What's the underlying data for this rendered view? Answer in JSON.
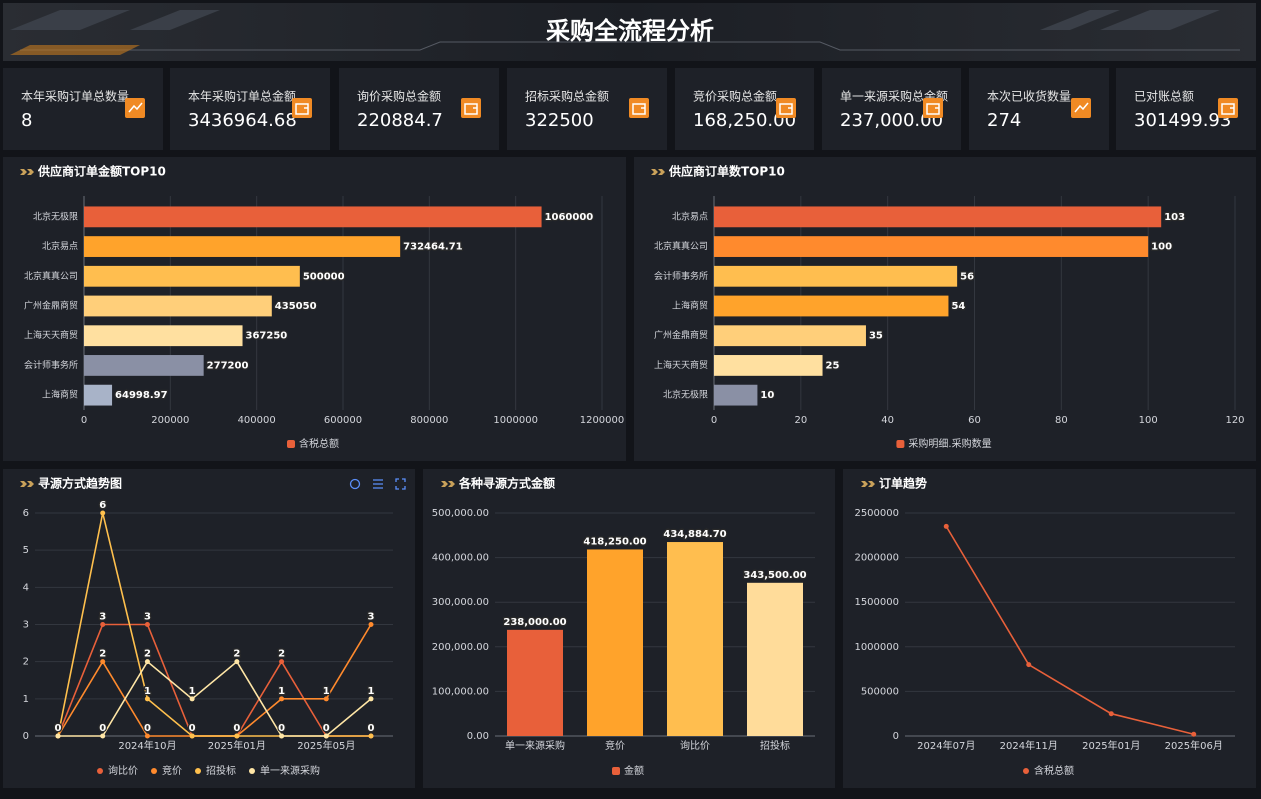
{
  "header": {
    "title": "采购全流程分析"
  },
  "kpis": [
    {
      "label": "本年采购订单总数量",
      "value": 8
    },
    {
      "label": "本年采购订单总金额",
      "value": 3436964.68
    },
    {
      "label": "询价采购总金额",
      "value": 220884.7
    },
    {
      "label": "招标采购总金额",
      "value": 322500
    },
    {
      "label": "竞价采购总金额",
      "value": 168250,
      "value_label": "168,250.00"
    },
    {
      "label": "单一来源采购总金额",
      "value": 237000,
      "value_label": "237,000.00"
    },
    {
      "label": "本次已收货数量",
      "value": 274
    },
    {
      "label": "已对账总额",
      "value": 301499.93
    }
  ],
  "chart_data": [
    {
      "type": "hbar",
      "title": "供应商订单金额TOP10",
      "categories": [
        "北京无极限",
        "北京易点",
        "北京真真公司",
        "广州金鼎商贸",
        "上海天天商贸",
        "会计师事务所",
        "上海商贸"
      ],
      "series": [
        {
          "name": "含税总额",
          "color": "#e8603a",
          "values": [
            1060000,
            732464.71,
            500000,
            435050,
            367250,
            277200,
            64998.97
          ]
        }
      ],
      "colors": [
        "#e8603a",
        "#ffa32b",
        "#ffbe4f",
        "#ffcf7a",
        "#ffe0a0",
        "#8a90a5",
        "#a8b3c8"
      ],
      "xlim": [
        0,
        1200000
      ],
      "xticks": [
        0,
        200000,
        400000,
        600000,
        800000,
        1000000,
        1200000
      ],
      "grid": true
    },
    {
      "type": "hbar",
      "title": "供应商订单数TOP10",
      "categories": [
        "北京易点",
        "北京真真公司",
        "会计师事务所",
        "上海商贸",
        "广州金鼎商贸",
        "上海天天商贸",
        "北京无极限"
      ],
      "series": [
        {
          "name": "采购明细.采购数量",
          "color": "#e8603a",
          "values": [
            103,
            100,
            56,
            54,
            35,
            25,
            10
          ]
        }
      ],
      "colors": [
        "#e8603a",
        "#ff8a2d",
        "#ffbe4f",
        "#ffa32b",
        "#ffcf7a",
        "#ffe0a0",
        "#8a90a5"
      ],
      "xlim": [
        0,
        120
      ],
      "xticks": [
        0,
        20,
        40,
        60,
        80,
        100,
        120
      ],
      "grid": true
    },
    {
      "type": "line",
      "title": "寻源方式趋势图",
      "categories": [
        null,
        null,
        "2024年10月",
        null,
        "2025年01月",
        null,
        "2025年05月",
        null
      ],
      "series": [
        {
          "name": "询比价",
          "color": "#e8603a",
          "values": [
            0,
            3,
            3,
            0,
            0,
            2,
            0,
            0
          ]
        },
        {
          "name": "竞价",
          "color": "#ff8a2d",
          "values": [
            0,
            2,
            0,
            0,
            0,
            1,
            1,
            3
          ]
        },
        {
          "name": "招投标",
          "color": "#ffc04d",
          "values": [
            0,
            6,
            1,
            0,
            0,
            0,
            0,
            0
          ]
        },
        {
          "name": "单一来源采购",
          "color": "#ffe6a6",
          "values": [
            0,
            0,
            2,
            1,
            2,
            0,
            0,
            1
          ]
        }
      ],
      "ylim": [
        0,
        6
      ],
      "yticks": [
        0,
        1,
        2,
        3,
        4,
        5,
        6
      ],
      "grid": true,
      "data_labels": true
    },
    {
      "type": "bar",
      "title": "各种寻源方式金额",
      "categories": [
        "单一来源采购",
        "竞价",
        "询比价",
        "招投标"
      ],
      "series": [
        {
          "name": "金额",
          "color": "#e8603a",
          "values": [
            238000,
            418250,
            434884.7,
            343500
          ],
          "value_labels": [
            "238,000.00",
            "418,250.00",
            "434,884.70",
            "343,500.00"
          ]
        }
      ],
      "colors": [
        "#e8603a",
        "#ffa32b",
        "#ffbe4f",
        "#ffdc9a"
      ],
      "ylim": [
        0,
        500000
      ],
      "yticks": [
        {
          "value": 0,
          "label": "0.00"
        },
        {
          "value": 100000,
          "label": "100,000.00"
        },
        {
          "value": 200000,
          "label": "200,000.00"
        },
        {
          "value": 300000,
          "label": "300,000.00"
        },
        {
          "value": 400000,
          "label": "400,000.00"
        },
        {
          "value": 500000,
          "label": "500,000.00"
        }
      ],
      "grid": true
    },
    {
      "type": "line",
      "title": "订单趋势",
      "categories": [
        "2024年07月",
        "2024年11月",
        "2025年01月",
        "2025年06月"
      ],
      "series": [
        {
          "name": "含税总额",
          "color": "#e8603a",
          "values": [
            2350000,
            800000,
            250000,
            20000
          ]
        }
      ],
      "ylim": [
        0,
        2500000
      ],
      "yticks": [
        0,
        500000,
        1000000,
        1500000,
        2000000,
        2500000
      ],
      "grid": true,
      "data_labels": false
    }
  ]
}
